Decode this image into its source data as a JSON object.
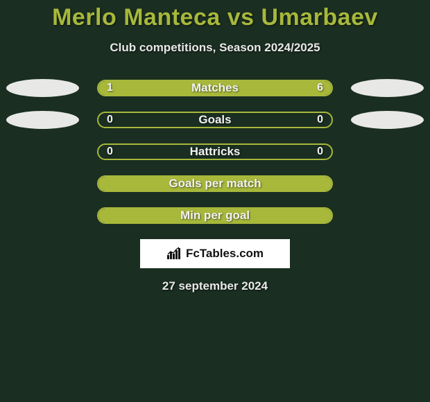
{
  "title": "Merlo Manteca vs Umarbaev",
  "subtitle": "Club competitions, Season 2024/2025",
  "brand": "FcTables.com",
  "date": "27 september 2024",
  "colors": {
    "background": "#1a2e21",
    "accent": "#a7b83b",
    "ellipse": "#e8e8e6",
    "text_light": "#f2f2f2",
    "brand_bg": "#ffffff",
    "brand_text": "#111111"
  },
  "rows": [
    {
      "label": "Matches",
      "left_val": "1",
      "right_val": "6",
      "left_pct": 17,
      "right_pct": 83,
      "show_ellipses": true,
      "border_color": "#a7b83b",
      "fill_color": "#a7b83b"
    },
    {
      "label": "Goals",
      "left_val": "0",
      "right_val": "0",
      "left_pct": 0,
      "right_pct": 0,
      "show_ellipses": true,
      "border_color": "#a7b83b",
      "fill_color": "#a7b83b"
    },
    {
      "label": "Hattricks",
      "left_val": "0",
      "right_val": "0",
      "left_pct": 0,
      "right_pct": 0,
      "show_ellipses": false,
      "border_color": "#a7b83b",
      "fill_color": "#a7b83b"
    },
    {
      "label": "Goals per match",
      "left_val": "",
      "right_val": "",
      "left_pct": 100,
      "right_pct": 0,
      "show_ellipses": false,
      "border_color": "#a7b83b",
      "fill_color": "#a7b83b"
    },
    {
      "label": "Min per goal",
      "left_val": "",
      "right_val": "",
      "left_pct": 100,
      "right_pct": 0,
      "show_ellipses": false,
      "border_color": "#a7b83b",
      "fill_color": "#a7b83b"
    }
  ]
}
